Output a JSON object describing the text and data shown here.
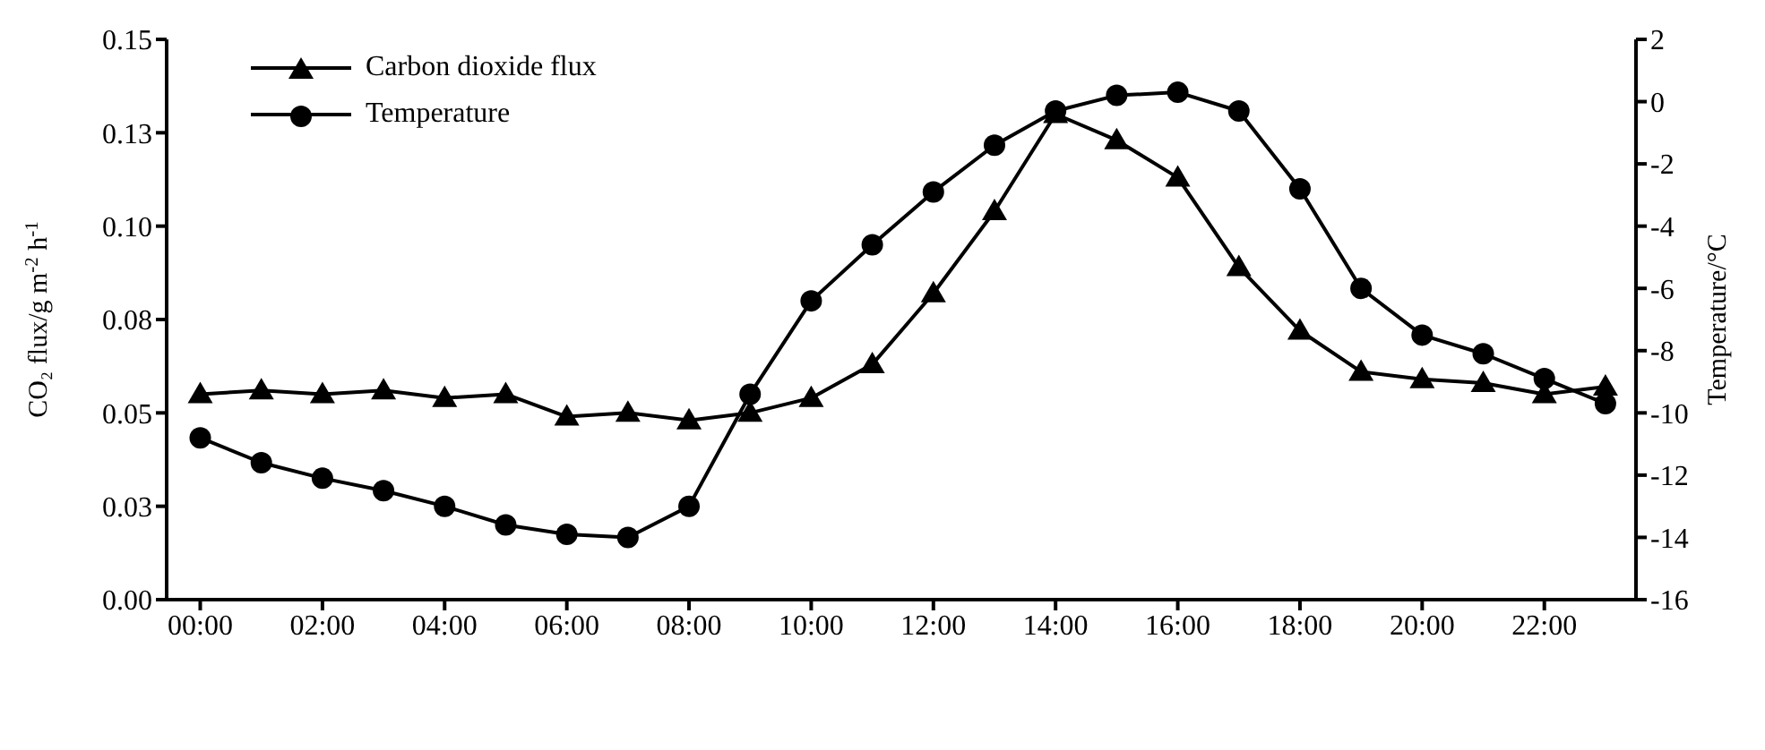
{
  "chart_data": {
    "type": "line",
    "ylabel": "CO₂ flux/g  m$^{-2}$  h$^{-1}$",
    "y2label": "Temperature/°C",
    "x": [
      0,
      1,
      2,
      3,
      4,
      5,
      6,
      7,
      8,
      9,
      10,
      11,
      12,
      13,
      14,
      15,
      16,
      17,
      18,
      19,
      20,
      21,
      22,
      23
    ],
    "xlim": [
      -0.55,
      23.5
    ],
    "xticks": [
      {
        "value": 0,
        "label": "00:00"
      },
      {
        "value": 2,
        "label": "02:00"
      },
      {
        "value": 4,
        "label": "04:00"
      },
      {
        "value": 6,
        "label": "06:00"
      },
      {
        "value": 8,
        "label": "08:00"
      },
      {
        "value": 10,
        "label": "10:00"
      },
      {
        "value": 12,
        "label": "12:00"
      },
      {
        "value": 14,
        "label": "14:00"
      },
      {
        "value": 16,
        "label": "16:00"
      },
      {
        "value": 18,
        "label": "18:00"
      },
      {
        "value": 20,
        "label": "20:00"
      },
      {
        "value": 22,
        "label": "22:00"
      }
    ],
    "ylim": [
      0,
      0.15
    ],
    "yticks": [
      {
        "value": 0,
        "label": "0.00"
      },
      {
        "value": 0.025,
        "label": "0.03"
      },
      {
        "value": 0.05,
        "label": "0.05"
      },
      {
        "value": 0.075,
        "label": "0.08"
      },
      {
        "value": 0.1,
        "label": "0.10"
      },
      {
        "value": 0.125,
        "label": "0.13"
      },
      {
        "value": 0.15,
        "label": "0.15"
      }
    ],
    "y2lim": [
      -16,
      2
    ],
    "y2ticks": [
      -16,
      -14,
      -12,
      -10,
      -8,
      -6,
      -4,
      -2,
      0,
      2
    ],
    "series": [
      {
        "name": "Carbon dioxide flux",
        "color": "#000000",
        "marker": "triangle",
        "values": [
          0.055,
          0.056,
          0.055,
          0.056,
          0.054,
          0.055,
          0.049,
          0.05,
          0.048,
          0.05,
          0.054,
          0.063,
          0.082,
          0.104,
          0.13,
          0.123,
          0.113,
          0.089,
          0.072,
          0.061,
          0.059,
          0.058,
          0.055,
          0.057
        ]
      },
      {
        "name": "Temperature",
        "color": "#000000",
        "marker": "circle",
        "axis": "y2",
        "values": [
          -10.8,
          -11.6,
          -12.1,
          -12.5,
          -13.0,
          -13.6,
          -13.9,
          -14.0,
          -13.0,
          -9.4,
          -6.4,
          -4.6,
          -2.9,
          -1.4,
          -0.3,
          0.2,
          0.3,
          -0.3,
          -2.8,
          -6.0,
          -7.5,
          -8.1,
          -8.9,
          -9.7
        ]
      }
    ],
    "legend": "top left",
    "grid": false,
    "line_style": "solid"
  }
}
